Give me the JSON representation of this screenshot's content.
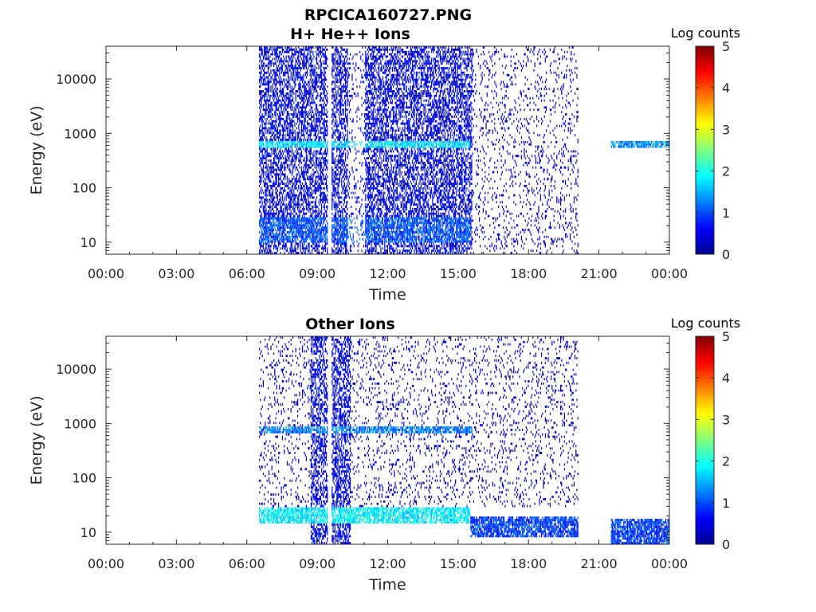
{
  "figure": {
    "title": "RPCICA160727.PNG"
  },
  "chart_data": [
    {
      "type": "heatmap",
      "title": "H+ He++ Ions",
      "xlabel": "Time",
      "ylabel": "Energy (eV)",
      "x_ticks": [
        "00:00",
        "03:00",
        "06:00",
        "09:00",
        "12:00",
        "15:00",
        "18:00",
        "21:00",
        "00:00"
      ],
      "x_range_hours": [
        0,
        24
      ],
      "y_scale": "log",
      "y_ticks": [
        10,
        100,
        1000,
        10000
      ],
      "y_tick_labels": [
        "10",
        "100",
        "1000",
        "10000"
      ],
      "y_range_eV": [
        6,
        40000
      ],
      "colorbar": {
        "title": "Log counts",
        "range": [
          0,
          5
        ],
        "ticks": [
          "0",
          "1",
          "2",
          "3",
          "4",
          "5"
        ],
        "colormap": "jet"
      },
      "data_segments_hours": [
        [
          6.5,
          9.45
        ],
        [
          9.6,
          20.1
        ],
        [
          21.5,
          24
        ]
      ],
      "features": [
        {
          "kind": "dense_band",
          "hours": [
            6.5,
            15.6
          ],
          "energy_eV": [
            6,
            40000
          ],
          "log_counts": 0.5
        },
        {
          "kind": "gap_in_dense_region",
          "hours": [
            10.3,
            11.0
          ],
          "log_counts": 0.2
        },
        {
          "kind": "line_band",
          "hours": [
            6.5,
            15.5
          ],
          "energy_eV": 650,
          "log_counts": 1.7
        },
        {
          "kind": "low_energy_band",
          "hours": [
            6.5,
            15.5
          ],
          "energy_eV": [
            10,
            28
          ],
          "log_counts": 1.0
        },
        {
          "kind": "sparse_band",
          "hours": [
            15.6,
            20.1
          ],
          "energy_eV": [
            6,
            40000
          ],
          "log_counts": 0.3
        },
        {
          "kind": "line_band",
          "hours": [
            21.5,
            24
          ],
          "energy_eV": 650,
          "log_counts": 1.3
        }
      ]
    },
    {
      "type": "heatmap",
      "title": "Other Ions",
      "xlabel": "Time",
      "ylabel": "Energy (eV)",
      "x_ticks": [
        "00:00",
        "03:00",
        "06:00",
        "09:00",
        "12:00",
        "15:00",
        "18:00",
        "21:00",
        "00:00"
      ],
      "x_range_hours": [
        0,
        24
      ],
      "y_scale": "log",
      "y_ticks": [
        10,
        100,
        1000,
        10000
      ],
      "y_tick_labels": [
        "10",
        "100",
        "1000",
        "10000"
      ],
      "y_range_eV": [
        6,
        40000
      ],
      "colorbar": {
        "title": "Log counts",
        "range": [
          0,
          5
        ],
        "ticks": [
          "0",
          "1",
          "2",
          "3",
          "4",
          "5"
        ],
        "colormap": "jet"
      },
      "data_segments_hours": [
        [
          6.5,
          9.45
        ],
        [
          9.6,
          20.1
        ],
        [
          21.5,
          24
        ]
      ],
      "features": [
        {
          "kind": "dense_band",
          "hours": [
            8.7,
            10.4
          ],
          "energy_eV": [
            6,
            40000
          ],
          "log_counts": 0.5
        },
        {
          "kind": "line_band",
          "hours": [
            6.5,
            15.6
          ],
          "energy_eV": 750,
          "log_counts": 1.2
        },
        {
          "kind": "low_energy_band",
          "hours": [
            6.5,
            15.5
          ],
          "energy_eV": [
            14,
            30
          ],
          "log_counts": 1.8
        },
        {
          "kind": "low_energy_band",
          "hours": [
            15.5,
            20.1
          ],
          "energy_eV": [
            8,
            20
          ],
          "log_counts": 0.9
        },
        {
          "kind": "sparse_band",
          "hours": [
            6.5,
            20.1
          ],
          "energy_eV": [
            30,
            40000
          ],
          "log_counts": 0.2
        },
        {
          "kind": "low_energy_band",
          "hours": [
            21.5,
            24
          ],
          "energy_eV": [
            6,
            18
          ],
          "log_counts": 0.9
        }
      ]
    }
  ]
}
